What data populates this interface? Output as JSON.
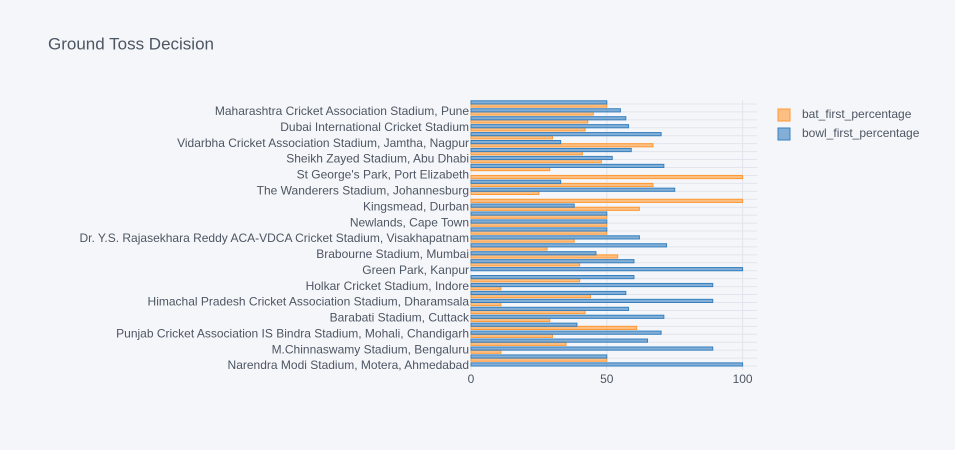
{
  "chart_data": {
    "type": "hbar",
    "title": "Ground Toss Decision",
    "categories": [
      "Narendra Modi Stadium, Motera, Ahmedabad",
      null,
      "M.Chinnaswamy Stadium, Bengaluru",
      null,
      "Punjab Cricket Association IS Bindra Stadium, Mohali, Chandigarh",
      null,
      "Barabati Stadium, Cuttack",
      null,
      "Himachal Pradesh Cricket Association Stadium, Dharamsala",
      null,
      "Holkar Cricket Stadium, Indore",
      null,
      "Green Park, Kanpur",
      null,
      "Brabourne Stadium, Mumbai",
      null,
      "Dr. Y.S. Rajasekhara Reddy ACA-VDCA Cricket Stadium, Visakhapatnam",
      null,
      "Newlands, Cape Town",
      null,
      "Kingsmead, Durban",
      null,
      "The Wanderers Stadium, Johannesburg",
      null,
      "St George's Park, Port Elizabeth",
      null,
      "Sheikh Zayed Stadium, Abu Dhabi",
      null,
      "Vidarbha Cricket Association Stadium, Jamtha, Nagpur",
      null,
      "Dubai International Cricket Stadium",
      null,
      "Maharashtra Cricket Association Stadium, Pune",
      null
    ],
    "series": [
      {
        "name": "bat_first_percentage",
        "color": "#ff9933",
        "values": [
          0,
          50,
          11,
          35,
          30,
          61,
          29,
          42,
          11,
          44,
          11,
          40,
          0,
          40,
          54,
          28,
          38,
          50,
          50,
          50,
          62,
          100,
          25,
          67,
          100,
          29,
          48,
          41,
          67,
          30,
          42,
          43,
          45,
          50
        ]
      },
      {
        "name": "bowl_first_percentage",
        "color": "#3780bf",
        "values": [
          100,
          50,
          89,
          65,
          70,
          39,
          71,
          58,
          89,
          57,
          89,
          60,
          100,
          60,
          46,
          72,
          62,
          50,
          50,
          50,
          38,
          0,
          75,
          33,
          0,
          71,
          52,
          59,
          33,
          70,
          58,
          57,
          55,
          50
        ]
      }
    ],
    "xlim": [
      0,
      105.3
    ],
    "xticks": [
      0,
      50,
      100
    ],
    "grid": true,
    "legend": "top-right"
  }
}
